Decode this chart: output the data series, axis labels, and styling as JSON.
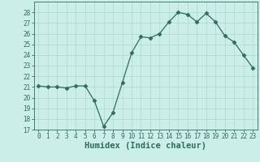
{
  "x": [
    0,
    1,
    2,
    3,
    4,
    5,
    6,
    7,
    8,
    9,
    10,
    11,
    12,
    13,
    14,
    15,
    16,
    17,
    18,
    19,
    20,
    21,
    22,
    23
  ],
  "y": [
    21.1,
    21.0,
    21.0,
    20.9,
    21.1,
    21.1,
    19.7,
    17.3,
    18.6,
    21.4,
    24.2,
    25.7,
    25.6,
    26.0,
    27.1,
    28.0,
    27.8,
    27.1,
    27.9,
    27.1,
    25.8,
    25.2,
    24.0,
    22.8
  ],
  "line_color": "#2d6e5e",
  "marker": "D",
  "marker_size": 2.5,
  "bg_color": "#cceee8",
  "grid_color": "#b0ddd8",
  "xlabel": "Humidex (Indice chaleur)",
  "ylim": [
    17,
    29
  ],
  "yticks": [
    17,
    18,
    19,
    20,
    21,
    22,
    23,
    24,
    25,
    26,
    27,
    28
  ],
  "xticks": [
    0,
    1,
    2,
    3,
    4,
    5,
    6,
    7,
    8,
    9,
    10,
    11,
    12,
    13,
    14,
    15,
    16,
    17,
    18,
    19,
    20,
    21,
    22,
    23
  ],
  "tick_label_size": 5.5,
  "xlabel_size": 7.5
}
